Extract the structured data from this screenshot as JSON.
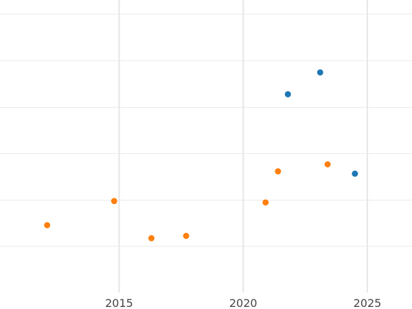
{
  "chart_data": {
    "type": "scatter",
    "title": "",
    "xlabel": "",
    "ylabel": "",
    "xlim": [
      2010.2,
      2026.8
    ],
    "ylim": [
      0,
      6.3
    ],
    "x_ticks": [
      2015,
      2020,
      2025
    ],
    "x_tick_labels": [
      "2015",
      "2020",
      "2025"
    ],
    "y_gridlines": [
      1,
      2,
      3,
      4,
      5,
      6
    ],
    "grid": true,
    "legend": "none",
    "series": [
      {
        "color": "#1f77b4",
        "points": [
          {
            "x": 2021.8,
            "y": 4.27
          },
          {
            "x": 2023.1,
            "y": 4.74
          },
          {
            "x": 2024.5,
            "y": 2.56
          }
        ]
      },
      {
        "color": "#ff7f0e",
        "points": [
          {
            "x": 2012.1,
            "y": 1.45
          },
          {
            "x": 2014.8,
            "y": 1.97
          },
          {
            "x": 2016.3,
            "y": 1.17
          },
          {
            "x": 2017.7,
            "y": 1.22
          },
          {
            "x": 2020.9,
            "y": 1.94
          },
          {
            "x": 2021.4,
            "y": 2.61
          },
          {
            "x": 2023.4,
            "y": 2.76
          }
        ]
      }
    ]
  }
}
